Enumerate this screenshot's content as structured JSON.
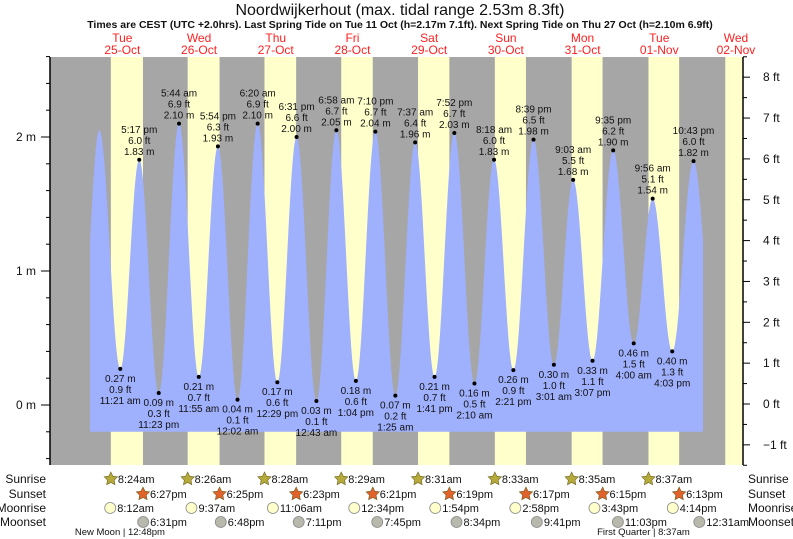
{
  "chart_data": {
    "type": "area",
    "title": "Noordwijkerhout (max. tidal range 2.53m 8.3ft)",
    "subtitle": "Times are CEST (UTC +2.0hrs). Last Spring Tide on Tue 11 Oct (h=2.17m 7.1ft). Next Spring Tide on Thu 27 Oct (h=2.10m 6.9ft)",
    "days": [
      {
        "name": "Tue",
        "date": "25-Oct"
      },
      {
        "name": "Wed",
        "date": "26-Oct"
      },
      {
        "name": "Thu",
        "date": "27-Oct"
      },
      {
        "name": "Fri",
        "date": "28-Oct"
      },
      {
        "name": "Sat",
        "date": "29-Oct"
      },
      {
        "name": "Sun",
        "date": "30-Oct"
      },
      {
        "name": "Mon",
        "date": "31-Oct"
      },
      {
        "name": "Tue",
        "date": "01-Nov"
      },
      {
        "name": "Wed",
        "date": "02-Nov"
      }
    ],
    "y_left": {
      "unit": "m",
      "range": [
        -0.45,
        2.6
      ],
      "ticks": [
        {
          "v": 0,
          "label": "0 m"
        },
        {
          "v": 1,
          "label": "1 m"
        },
        {
          "v": 2,
          "label": "2 m"
        }
      ]
    },
    "y_right": {
      "unit": "ft",
      "ticks": [
        {
          "v": -1,
          "label": "−1 ft"
        },
        {
          "v": 0,
          "label": "0 ft"
        },
        {
          "v": 1,
          "label": "1 ft"
        },
        {
          "v": 2,
          "label": "2 ft"
        },
        {
          "v": 3,
          "label": "3 ft"
        },
        {
          "v": 4,
          "label": "4 ft"
        },
        {
          "v": 5,
          "label": "5 ft"
        },
        {
          "v": 6,
          "label": "6 ft"
        },
        {
          "v": 7,
          "label": "7 ft"
        },
        {
          "v": 8,
          "label": "8 ft"
        }
      ]
    },
    "tides": [
      {
        "day": 0,
        "type": "low",
        "time": "11:21 am",
        "m": 0.27,
        "m_label": "0.27 m",
        "ft_label": "0.9 ft"
      },
      {
        "day": 0,
        "type": "high",
        "time": "5:17 pm",
        "m": 1.83,
        "m_label": "1.83 m",
        "ft_label": "6.0 ft"
      },
      {
        "day": 0,
        "type": "low",
        "time": "11:23 pm",
        "m": 0.09,
        "m_label": "0.09 m",
        "ft_label": "0.3 ft"
      },
      {
        "day": 1,
        "type": "high",
        "time": "5:44 am",
        "m": 2.1,
        "m_label": "2.10 m",
        "ft_label": "6.9 ft"
      },
      {
        "day": 1,
        "type": "low",
        "time": "11:55 am",
        "m": 0.21,
        "m_label": "0.21 m",
        "ft_label": "0.7 ft"
      },
      {
        "day": 1,
        "type": "high",
        "time": "5:54 pm",
        "m": 1.93,
        "m_label": "1.93 m",
        "ft_label": "6.3 ft"
      },
      {
        "day": 2,
        "type": "low",
        "time": "12:02 am",
        "m": 0.04,
        "m_label": "0.04 m",
        "ft_label": "0.1 ft"
      },
      {
        "day": 2,
        "type": "high",
        "time": "6:20 am",
        "m": 2.1,
        "m_label": "2.10 m",
        "ft_label": "6.9 ft"
      },
      {
        "day": 2,
        "type": "low",
        "time": "12:29 pm",
        "m": 0.17,
        "m_label": "0.17 m",
        "ft_label": "0.6 ft"
      },
      {
        "day": 2,
        "type": "high",
        "time": "6:31 pm",
        "m": 2.0,
        "m_label": "2.00 m",
        "ft_label": "6.6 ft"
      },
      {
        "day": 3,
        "type": "low",
        "time": "12:43 am",
        "m": 0.03,
        "m_label": "0.03 m",
        "ft_label": "0.1 ft"
      },
      {
        "day": 3,
        "type": "high",
        "time": "6:58 am",
        "m": 2.05,
        "m_label": "2.05 m",
        "ft_label": "6.7 ft"
      },
      {
        "day": 3,
        "type": "low",
        "time": "1:04 pm",
        "m": 0.18,
        "m_label": "0.18 m",
        "ft_label": "0.6 ft"
      },
      {
        "day": 3,
        "type": "high",
        "time": "7:10 pm",
        "m": 2.04,
        "m_label": "2.04 m",
        "ft_label": "6.7 ft"
      },
      {
        "day": 4,
        "type": "low",
        "time": "1:25 am",
        "m": 0.07,
        "m_label": "0.07 m",
        "ft_label": "0.2 ft"
      },
      {
        "day": 4,
        "type": "high",
        "time": "7:37 am",
        "m": 1.96,
        "m_label": "1.96 m",
        "ft_label": "6.4 ft"
      },
      {
        "day": 4,
        "type": "low",
        "time": "1:41 pm",
        "m": 0.21,
        "m_label": "0.21 m",
        "ft_label": "0.7 ft"
      },
      {
        "day": 4,
        "type": "high",
        "time": "7:52 pm",
        "m": 2.03,
        "m_label": "2.03 m",
        "ft_label": "6.7 ft"
      },
      {
        "day": 5,
        "type": "low",
        "time": "2:10 am",
        "m": 0.16,
        "m_label": "0.16 m",
        "ft_label": "0.5 ft"
      },
      {
        "day": 5,
        "type": "high",
        "time": "8:18 am",
        "m": 1.83,
        "m_label": "1.83 m",
        "ft_label": "6.0 ft"
      },
      {
        "day": 5,
        "type": "low",
        "time": "2:21 pm",
        "m": 0.26,
        "m_label": "0.26 m",
        "ft_label": "0.9 ft"
      },
      {
        "day": 5,
        "type": "high",
        "time": "8:39 pm",
        "m": 1.98,
        "m_label": "1.98 m",
        "ft_label": "6.5 ft"
      },
      {
        "day": 6,
        "type": "low",
        "time": "3:01 am",
        "m": 0.3,
        "m_label": "0.30 m",
        "ft_label": "1.0 ft"
      },
      {
        "day": 6,
        "type": "high",
        "time": "9:03 am",
        "m": 1.68,
        "m_label": "1.68 m",
        "ft_label": "5.5 ft"
      },
      {
        "day": 6,
        "type": "low",
        "time": "3:07 pm",
        "m": 0.33,
        "m_label": "0.33 m",
        "ft_label": "1.1 ft"
      },
      {
        "day": 6,
        "type": "high",
        "time": "9:35 pm",
        "m": 1.9,
        "m_label": "1.90 m",
        "ft_label": "6.2 ft"
      },
      {
        "day": 7,
        "type": "low",
        "time": "4:00 am",
        "m": 0.46,
        "m_label": "0.46 m",
        "ft_label": "1.5 ft"
      },
      {
        "day": 7,
        "type": "high",
        "time": "9:56 am",
        "m": 1.54,
        "m_label": "1.54 m",
        "ft_label": "5.1 ft"
      },
      {
        "day": 7,
        "type": "low",
        "time": "4:03 pm",
        "m": 0.4,
        "m_label": "0.40 m",
        "ft_label": "1.3 ft"
      },
      {
        "day": 7,
        "type": "high",
        "time": "10:43 pm",
        "m": 1.82,
        "m_label": "1.82 m",
        "ft_label": "6.0 ft"
      }
    ],
    "rows": {
      "sunrise": "Sunrise",
      "sunset": "Sunset",
      "moonrise": "Moonrise",
      "moonset": "Moonset"
    },
    "sunrise": [
      {
        "day": 0,
        "time": "8:24am"
      },
      {
        "day": 1,
        "time": "8:26am"
      },
      {
        "day": 2,
        "time": "8:28am"
      },
      {
        "day": 3,
        "time": "8:29am"
      },
      {
        "day": 4,
        "time": "8:31am"
      },
      {
        "day": 5,
        "time": "8:33am"
      },
      {
        "day": 6,
        "time": "8:35am"
      },
      {
        "day": 7,
        "time": "8:37am"
      }
    ],
    "sunset": [
      {
        "day": 0,
        "time": "6:27pm"
      },
      {
        "day": 1,
        "time": "6:25pm"
      },
      {
        "day": 2,
        "time": "6:23pm"
      },
      {
        "day": 3,
        "time": "6:21pm"
      },
      {
        "day": 4,
        "time": "6:19pm"
      },
      {
        "day": 5,
        "time": "6:17pm"
      },
      {
        "day": 6,
        "time": "6:15pm"
      },
      {
        "day": 7,
        "time": "6:13pm"
      }
    ],
    "moonrise": [
      {
        "day": 0,
        "time": "8:12am"
      },
      {
        "day": 1,
        "time": "9:37am"
      },
      {
        "day": 2,
        "time": "11:06am"
      },
      {
        "day": 3,
        "time": "12:34pm"
      },
      {
        "day": 4,
        "time": "1:54pm"
      },
      {
        "day": 5,
        "time": "2:58pm"
      },
      {
        "day": 6,
        "time": "3:43pm"
      },
      {
        "day": 7,
        "time": "4:14pm"
      }
    ],
    "moonset": [
      {
        "day": 0,
        "time": "6:31pm"
      },
      {
        "day": 1,
        "time": "6:48pm"
      },
      {
        "day": 2,
        "time": "7:11pm"
      },
      {
        "day": 3,
        "time": "7:45pm"
      },
      {
        "day": 4,
        "time": "8:34pm"
      },
      {
        "day": 5,
        "time": "9:41pm"
      },
      {
        "day": 6,
        "time": "11:03pm"
      },
      {
        "day": 8,
        "time": "12:31am"
      }
    ],
    "moon_phases": [
      {
        "day": 0,
        "time": "12:48pm",
        "label": "New Moon | 12:48pm"
      },
      {
        "day": 7,
        "time": "8:37am",
        "label": "First Quarter | 8:37am"
      }
    ]
  },
  "colors": {
    "night": "#a6a6a6",
    "day": "#ffffcc",
    "water": "#9fb0fd",
    "day_label": "#ff2020",
    "sunrise": "#b5aa3a",
    "sunset": "#e2622c",
    "moonrise": "#ffffcc",
    "moonset": "#b8b8ac"
  }
}
